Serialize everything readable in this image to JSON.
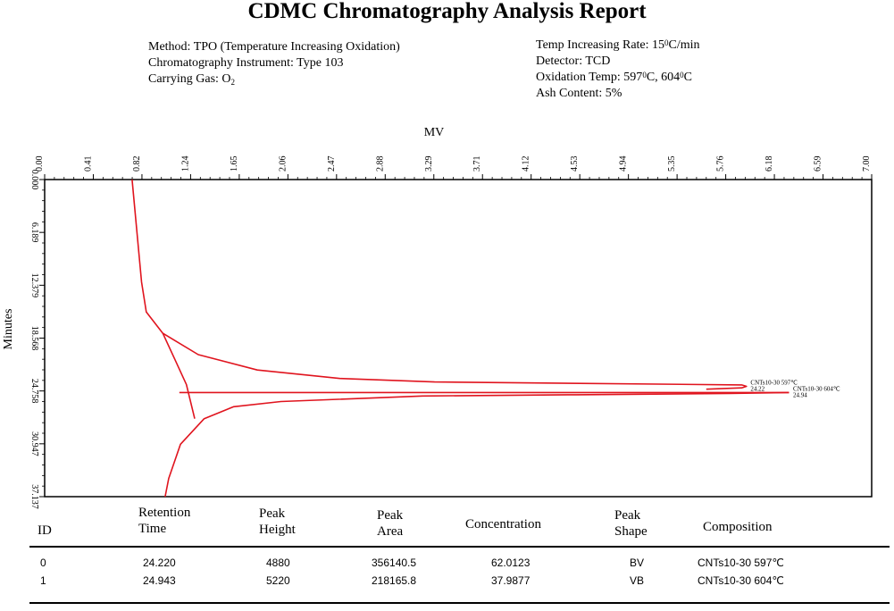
{
  "report": {
    "title": "CDMC Chromatography Analysis Report",
    "method_left": [
      "Method: TPO (Temperature Increasing Oxidation)",
      "Chromatography Instrument: Type 103"
    ],
    "carrying_gas_prefix": "Carrying Gas: O",
    "carrying_gas_sub": "2",
    "rate_prefix": "Temp Increasing Rate: 15",
    "rate_sup": "0",
    "rate_suffix": "C/min",
    "detector": "Detector: TCD",
    "ox_prefix": "Oxidation Temp: 597",
    "ox_sup1": "0",
    "ox_mid": "C, 604",
    "ox_sup2": "0",
    "ox_suffix": "C",
    "ash": "Ash Content: 5%"
  },
  "chart_data": {
    "type": "line",
    "xlabel": "MV",
    "ylabel": "Minutes",
    "x_ticks": [
      "0.00",
      "0.41",
      "0.82",
      "1.24",
      "1.65",
      "2.06",
      "2.47",
      "2.88",
      "3.29",
      "3.71",
      "4.12",
      "4.53",
      "4.94",
      "5.35",
      "5.76",
      "6.18",
      "6.59",
      "7.00"
    ],
    "y_ticks": [
      "0.000",
      "6.189",
      "12.379",
      "18.568",
      "24.758",
      "30.947",
      "37.137"
    ],
    "xlim": [
      0,
      7.0
    ],
    "ylim": [
      0,
      37.137
    ],
    "grid": false,
    "series": [
      {
        "points": [
          [
            0.74,
            0.0
          ],
          [
            0.78,
            6.0
          ],
          [
            0.82,
            12.0
          ],
          [
            0.86,
            15.5
          ],
          [
            1.0,
            18.0
          ],
          [
            1.3,
            20.5
          ],
          [
            1.8,
            22.3
          ],
          [
            2.5,
            23.3
          ],
          [
            3.3,
            23.7
          ],
          [
            5.9,
            24.05
          ],
          [
            5.94,
            24.22
          ],
          [
            5.9,
            24.4
          ],
          [
            5.6,
            24.55
          ]
        ]
      },
      {
        "points": [
          [
            6.3,
            24.94
          ],
          [
            5.8,
            25.05
          ],
          [
            4.5,
            25.2
          ],
          [
            3.2,
            25.35
          ],
          [
            2.0,
            26.0
          ],
          [
            1.6,
            26.6
          ],
          [
            1.35,
            28.0
          ],
          [
            1.15,
            31.0
          ],
          [
            1.05,
            35.0
          ],
          [
            1.02,
            37.137
          ]
        ]
      },
      {
        "points": [
          [
            1.0,
            18.0
          ],
          [
            1.1,
            21.0
          ],
          [
            1.2,
            24.0
          ],
          [
            1.27,
            28.0
          ]
        ]
      },
      {
        "points": [
          [
            1.14,
            24.94
          ],
          [
            6.3,
            24.94
          ]
        ]
      }
    ],
    "annotations": [
      {
        "text": "CNTs10-30 597℃",
        "x": 5.96,
        "y": 24.22
      },
      {
        "text": "24.22",
        "x": 5.96,
        "y": 24.22
      },
      {
        "text": "CNTs10-30 604℃",
        "x": 6.32,
        "y": 24.94
      },
      {
        "text": "24.94",
        "x": 6.32,
        "y": 24.94
      }
    ]
  },
  "table": {
    "headers": {
      "id": "ID",
      "retention_1": "Retention",
      "retention_2": "Time",
      "height_1": "Peak",
      "height_2": "Height",
      "area_1": "Peak",
      "area_2": "Area",
      "concentration": "Concentration",
      "shape_1": "Peak",
      "shape_2": "Shape",
      "composition": "Composition"
    },
    "rows": [
      {
        "id": "0",
        "retention_time": "24.220",
        "peak_height": "4880",
        "peak_area": "356140.5",
        "concentration": "62.0123",
        "peak_shape": "BV",
        "composition": "CNTs10-30 597℃"
      },
      {
        "id": "1",
        "retention_time": "24.943",
        "peak_height": "5220",
        "peak_area": "218165.8",
        "concentration": "37.9877",
        "peak_shape": "VB",
        "composition": "CNTs10-30 604℃"
      }
    ]
  }
}
